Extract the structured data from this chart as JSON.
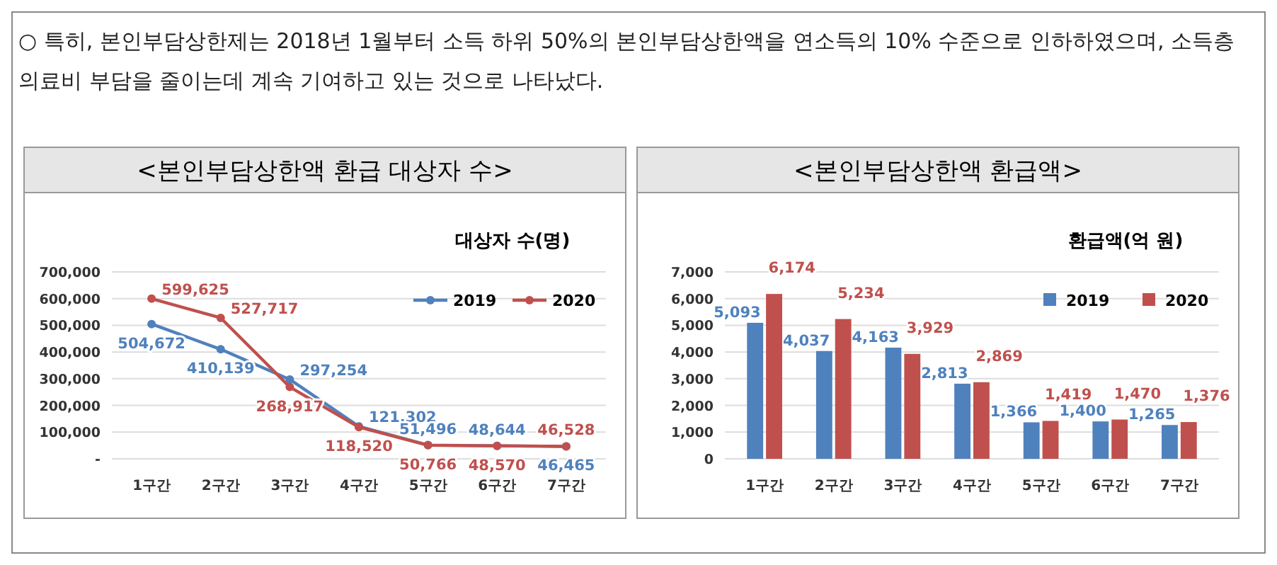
{
  "chart_data": [
    {
      "type": "line",
      "title": "<본인부담상한액 환급 대상자 수>",
      "subtitle": "대상자 수(명)",
      "annotations": [
        "○ 특히, 본인부담상한제는 2018년 1월부터 소득 하위 50%의 본인부담상한액을 연소득의 10% 수준으로 인하하였으며, 소득층 의료비 부담을 줄이는데 계속 기여하고 있는 것으로 나타났다."
      ],
      "categories": [
        "1구간",
        "2구간",
        "3구간",
        "4구간",
        "5구간",
        "6구간",
        "7구간"
      ],
      "series": [
        {
          "name": "2019",
          "color": "#4f81bd",
          "values": [
            504672,
            410139,
            297254,
            121302,
            51496,
            48644,
            46465
          ],
          "value_labels": [
            "504,672",
            "410,139",
            "297,254",
            "121,302",
            "51,496",
            "48,644",
            "46,465"
          ]
        },
        {
          "name": "2020",
          "color": "#c0504d",
          "values": [
            599625,
            527717,
            268917,
            118520,
            50766,
            48570,
            46528
          ],
          "value_labels": [
            "599,625",
            "527,717",
            "268,917",
            "118,520",
            "50,766",
            "48,570",
            "46,528"
          ]
        }
      ],
      "ylim": [
        0,
        700000
      ],
      "yticks": [
        {
          "value": 0,
          "label": "-"
        },
        {
          "value": 100000,
          "label": "100,000"
        },
        {
          "value": 200000,
          "label": "200,000"
        },
        {
          "value": 300000,
          "label": "300,000"
        },
        {
          "value": 400000,
          "label": "400,000"
        },
        {
          "value": 500000,
          "label": "500,000"
        },
        {
          "value": 600000,
          "label": "600,000"
        },
        {
          "value": 700000,
          "label": "700,000"
        }
      ],
      "grid": "y",
      "legend": "top right",
      "marker": "circle"
    },
    {
      "type": "bar",
      "title": "<본인부담상한액 환급액>",
      "subtitle": "환급액(억 원)",
      "categories": [
        "1구간",
        "2구간",
        "3구간",
        "4구간",
        "5구간",
        "6구간",
        "7구간"
      ],
      "series": [
        {
          "name": "2019",
          "color": "#4f81bd",
          "values": [
            5093,
            4037,
            4163,
            2813,
            1366,
            1400,
            1265
          ],
          "value_labels": [
            "5,093",
            "4,037",
            "4,163",
            "2,813",
            "1,366",
            "1,400",
            "1,265"
          ]
        },
        {
          "name": "2020",
          "color": "#c0504d",
          "values": [
            6174,
            5234,
            3929,
            2869,
            1419,
            1470,
            1376
          ],
          "value_labels": [
            "6,174",
            "5,234",
            "3,929",
            "2,869",
            "1,419",
            "1,470",
            "1,376"
          ]
        }
      ],
      "ylim": [
        0,
        7000
      ],
      "yticks": [
        0,
        {
          "value": 1000,
          "label": "1,000"
        },
        {
          "value": 2000,
          "label": "2,000"
        },
        {
          "value": 3000,
          "label": "3,000"
        },
        {
          "value": 4000,
          "label": "4,000"
        },
        {
          "value": 5000,
          "label": "5,000"
        },
        {
          "value": 6000,
          "label": "6,000"
        },
        {
          "value": 7000,
          "label": "7,000"
        }
      ],
      "grid": "y",
      "legend": "top right"
    }
  ]
}
